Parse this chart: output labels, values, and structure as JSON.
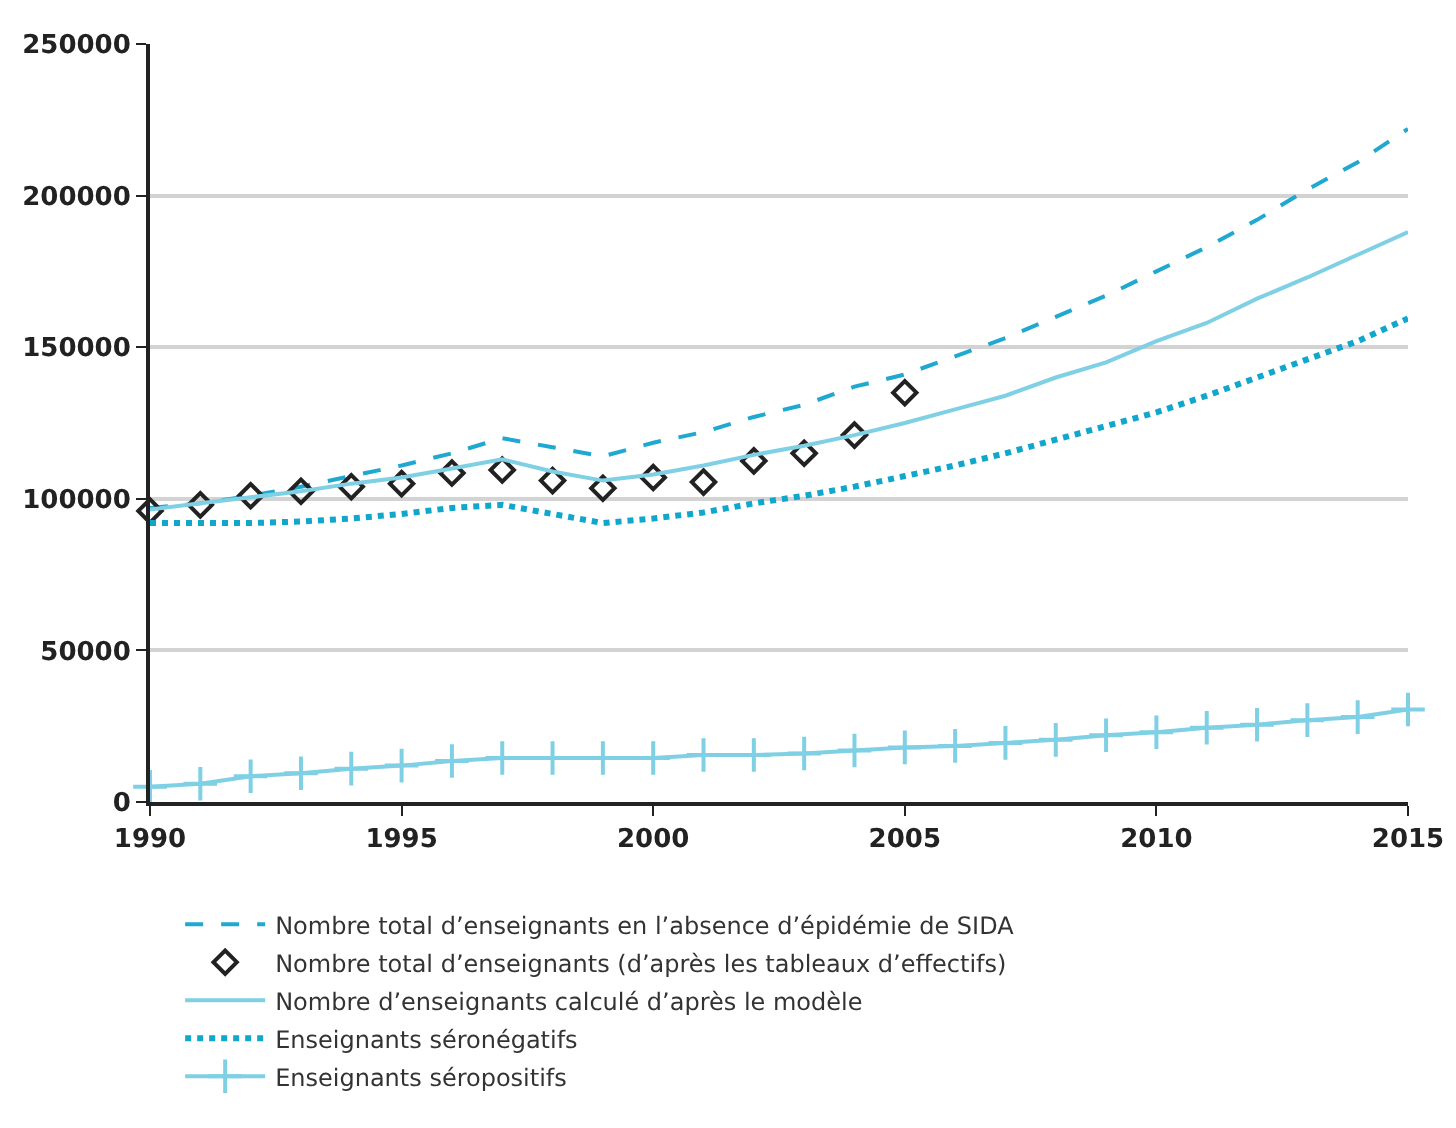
{
  "chart_data": {
    "type": "line",
    "x": [
      1990,
      1991,
      1992,
      1993,
      1994,
      1995,
      1996,
      1997,
      1998,
      1999,
      2000,
      2001,
      2002,
      2003,
      2004,
      2005,
      2006,
      2007,
      2008,
      2009,
      2010,
      2011,
      2012,
      2013,
      2014,
      2015
    ],
    "xlim": [
      1990,
      2015
    ],
    "xticks": [
      1990,
      1995,
      2000,
      2005,
      2010,
      2015
    ],
    "ylim": [
      0,
      250000
    ],
    "yticks": [
      0,
      50000,
      100000,
      150000,
      200000,
      250000
    ],
    "grid": "y",
    "legend": "bottom",
    "series": [
      {
        "name": "Nombre total d’enseignants en l’absence d’épidémie de SIDA",
        "color": "#1fa8d0",
        "line_style": "dashed",
        "marker": "none",
        "values": [
          97000,
          98500,
          101000,
          104000,
          107500,
          111000,
          115000,
          120000,
          117000,
          114000,
          118500,
          122000,
          127000,
          131000,
          137000,
          141000,
          147000,
          153000,
          160000,
          167000,
          175000,
          183000,
          192000,
          202000,
          211000,
          222000
        ]
      },
      {
        "name": "Nombre total d’enseignants (d’après les tableaux d’effectifs)",
        "type": "scatter",
        "color": "#222222",
        "marker": "diamond",
        "values": [
          96000,
          98000,
          101000,
          102500,
          104000,
          105000,
          108500,
          109500,
          106000,
          103500,
          107000,
          105500,
          112500,
          115000,
          121000,
          135000,
          null,
          null,
          null,
          null,
          null,
          null,
          null,
          null,
          null,
          null
        ]
      },
      {
        "name": "Nombre d’enseignants calculé d’après le modèle",
        "color": "#7fd0e4",
        "line_style": "solid",
        "marker": "none",
        "values": [
          96500,
          98500,
          100500,
          102500,
          105000,
          107000,
          110000,
          113000,
          109000,
          106000,
          108000,
          111000,
          114500,
          117500,
          121000,
          125000,
          129500,
          134000,
          140000,
          145000,
          152000,
          158000,
          166000,
          173000,
          180500,
          188000
        ]
      },
      {
        "name": "Enseignants séronégatifs",
        "color": "#11a6cc",
        "line_style": "dotted",
        "marker": "none",
        "values": [
          92000,
          92000,
          92000,
          92500,
          93500,
          95000,
          97000,
          98000,
          95000,
          92000,
          93500,
          95500,
          98500,
          101000,
          104000,
          107500,
          111000,
          115000,
          119500,
          124000,
          128500,
          134000,
          140000,
          146000,
          152000,
          159500
        ]
      },
      {
        "name": "Enseignants séropositifs",
        "color": "#7fd0e4",
        "line_style": "solid",
        "marker": "cross",
        "values": [
          5000,
          6000,
          8500,
          9500,
          11000,
          12000,
          13500,
          14500,
          14500,
          14500,
          14500,
          15500,
          15500,
          16000,
          17000,
          18000,
          18500,
          19500,
          20500,
          22000,
          23000,
          24500,
          25500,
          27000,
          28000,
          30500
        ]
      }
    ]
  }
}
